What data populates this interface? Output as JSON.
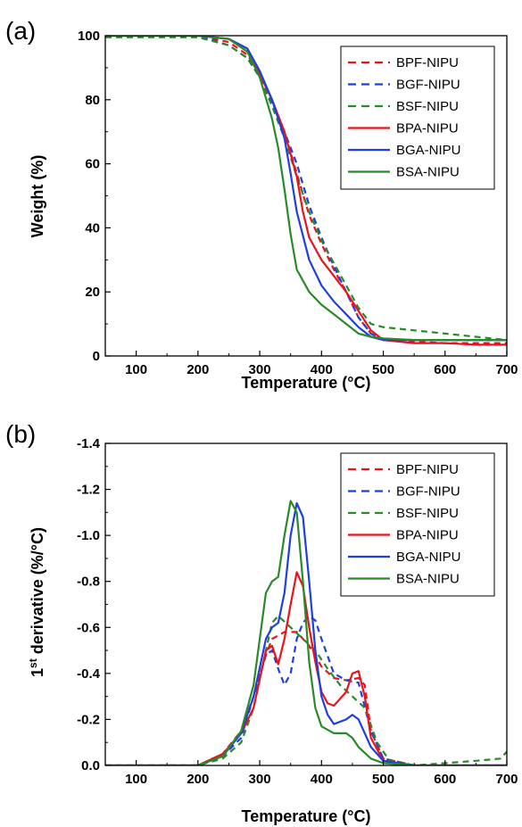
{
  "chart_data": [
    {
      "type": "line",
      "panel_label": "(a)",
      "xlabel": "Temperature (°C)",
      "ylabel": "Weight (%)",
      "xlim": [
        50,
        700
      ],
      "ylim": [
        0,
        100
      ],
      "xticks": [
        100,
        200,
        300,
        400,
        500,
        600,
        700
      ],
      "yticks": [
        0,
        20,
        40,
        60,
        80,
        100
      ],
      "ytick_labels": [
        "0",
        "20",
        "40",
        "60",
        "80",
        "100"
      ],
      "grid": false,
      "legend_position": "top-right",
      "series": [
        {
          "name": "BPF-NIPU",
          "color": "#e8141b",
          "dash": true,
          "x": [
            50,
            200,
            250,
            280,
            300,
            320,
            340,
            360,
            380,
            400,
            420,
            440,
            460,
            480,
            500,
            550,
            600,
            650,
            700
          ],
          "y": [
            100,
            100,
            98,
            94,
            88,
            80,
            70,
            57,
            44,
            35,
            27,
            20,
            12,
            7,
            5,
            4.5,
            4,
            4,
            4
          ]
        },
        {
          "name": "BGF-NIPU",
          "color": "#1f3fe0",
          "dash": true,
          "x": [
            50,
            200,
            250,
            280,
            300,
            320,
            340,
            360,
            380,
            400,
            420,
            440,
            460,
            480,
            500,
            550,
            600,
            650,
            700
          ],
          "y": [
            100,
            100,
            97,
            93,
            87,
            79,
            70,
            60,
            47,
            37,
            28,
            20,
            12,
            7,
            5,
            5,
            5,
            5,
            5
          ]
        },
        {
          "name": "BSF-NIPU",
          "color": "#2a8a2a",
          "dash": true,
          "x": [
            50,
            200,
            250,
            280,
            300,
            320,
            340,
            360,
            380,
            400,
            420,
            440,
            460,
            480,
            500,
            550,
            600,
            650,
            700
          ],
          "y": [
            99.5,
            99.5,
            97,
            93,
            87,
            78,
            68,
            56,
            45,
            36,
            29,
            22,
            15,
            10,
            9,
            8,
            7,
            6,
            5
          ]
        },
        {
          "name": "BPA-NIPU",
          "color": "#e8141b",
          "dash": false,
          "x": [
            50,
            200,
            250,
            280,
            300,
            320,
            340,
            360,
            370,
            380,
            400,
            420,
            440,
            460,
            480,
            500,
            550,
            600,
            650,
            700
          ],
          "y": [
            100,
            100,
            99,
            95,
            88,
            80,
            70,
            56,
            45,
            37,
            30,
            25,
            20,
            14,
            8,
            5,
            4,
            4,
            3.5,
            3.5
          ]
        },
        {
          "name": "BGA-NIPU",
          "color": "#1f3fe0",
          "dash": false,
          "x": [
            50,
            200,
            250,
            280,
            300,
            320,
            340,
            350,
            360,
            380,
            400,
            420,
            440,
            460,
            480,
            500,
            550,
            600,
            650,
            700
          ],
          "y": [
            100,
            100,
            99,
            96,
            89,
            80,
            68,
            57,
            45,
            30,
            22,
            17,
            13,
            9,
            6,
            5,
            5,
            5,
            5,
            5
          ]
        },
        {
          "name": "BSA-NIPU",
          "color": "#2a8a2a",
          "dash": false,
          "x": [
            50,
            200,
            250,
            280,
            300,
            320,
            330,
            340,
            350,
            360,
            380,
            400,
            420,
            440,
            460,
            480,
            500,
            550,
            600,
            650,
            700
          ],
          "y": [
            100,
            100,
            99,
            95,
            87,
            74,
            65,
            52,
            38,
            27,
            20,
            16,
            13,
            10,
            7,
            6,
            5.5,
            5,
            5,
            5,
            5
          ]
        }
      ]
    },
    {
      "type": "line",
      "panel_label": "(b)",
      "xlabel": "Temperature (°C)",
      "ylabel": "1st derivative (%/°C)",
      "xlim": [
        50,
        700
      ],
      "ylim": [
        0,
        -1.4
      ],
      "y_inverted": true,
      "xticks": [
        100,
        200,
        300,
        400,
        500,
        600,
        700
      ],
      "yticks": [
        0,
        -0.2,
        -0.4,
        -0.6,
        -0.8,
        -1.0,
        -1.2,
        -1.4
      ],
      "ytick_labels": [
        "0.0",
        "-0.2",
        "-0.4",
        "-0.6",
        "-0.8",
        "-1.0",
        "-1.2",
        "-1.4"
      ],
      "grid": false,
      "legend_position": "top-right",
      "series": [
        {
          "name": "BPF-NIPU",
          "color": "#e8141b",
          "dash": true,
          "x": [
            50,
            200,
            240,
            270,
            290,
            310,
            320,
            340,
            360,
            380,
            400,
            420,
            440,
            460,
            470,
            480,
            500,
            550,
            700
          ],
          "y": [
            0,
            0,
            -0.05,
            -0.15,
            -0.3,
            -0.48,
            -0.55,
            -0.58,
            -0.58,
            -0.52,
            -0.43,
            -0.38,
            -0.37,
            -0.38,
            -0.35,
            -0.15,
            -0.03,
            0,
            0
          ]
        },
        {
          "name": "BGF-NIPU",
          "color": "#1f3fe0",
          "dash": true,
          "x": [
            50,
            200,
            240,
            270,
            290,
            310,
            320,
            330,
            340,
            350,
            360,
            370,
            380,
            390,
            400,
            420,
            440,
            460,
            480,
            500,
            550,
            700
          ],
          "y": [
            0,
            0,
            -0.04,
            -0.12,
            -0.3,
            -0.48,
            -0.5,
            -0.42,
            -0.35,
            -0.4,
            -0.55,
            -0.62,
            -0.65,
            -0.63,
            -0.55,
            -0.4,
            -0.37,
            -0.36,
            -0.15,
            -0.03,
            0,
            0
          ]
        },
        {
          "name": "BSF-NIPU",
          "color": "#2a8a2a",
          "dash": true,
          "x": [
            50,
            200,
            240,
            270,
            290,
            310,
            320,
            330,
            350,
            370,
            390,
            410,
            430,
            450,
            470,
            490,
            510,
            550,
            600,
            650,
            690,
            700
          ],
          "y": [
            0,
            0,
            -0.03,
            -0.1,
            -0.25,
            -0.5,
            -0.62,
            -0.65,
            -0.6,
            -0.55,
            -0.5,
            -0.42,
            -0.35,
            -0.3,
            -0.25,
            -0.1,
            -0.02,
            0,
            -0.01,
            -0.02,
            -0.03,
            -0.06
          ]
        },
        {
          "name": "BPA-NIPU",
          "color": "#e8141b",
          "dash": false,
          "x": [
            50,
            200,
            240,
            270,
            290,
            310,
            320,
            330,
            340,
            350,
            360,
            370,
            380,
            390,
            400,
            410,
            420,
            440,
            450,
            460,
            470,
            480,
            500,
            550,
            700
          ],
          "y": [
            0,
            0,
            -0.05,
            -0.14,
            -0.25,
            -0.5,
            -0.52,
            -0.44,
            -0.55,
            -0.7,
            -0.84,
            -0.78,
            -0.6,
            -0.45,
            -0.32,
            -0.27,
            -0.26,
            -0.32,
            -0.4,
            -0.41,
            -0.3,
            -0.12,
            -0.02,
            0,
            0
          ]
        },
        {
          "name": "BGA-NIPU",
          "color": "#1f3fe0",
          "dash": false,
          "x": [
            50,
            200,
            240,
            270,
            290,
            310,
            320,
            330,
            340,
            350,
            360,
            370,
            380,
            390,
            400,
            410,
            420,
            440,
            450,
            460,
            470,
            480,
            500,
            550,
            700
          ],
          "y": [
            0,
            0,
            -0.04,
            -0.14,
            -0.3,
            -0.55,
            -0.6,
            -0.62,
            -0.75,
            -1.0,
            -1.14,
            -1.08,
            -0.8,
            -0.5,
            -0.3,
            -0.22,
            -0.18,
            -0.2,
            -0.22,
            -0.2,
            -0.14,
            -0.08,
            -0.02,
            0,
            0
          ]
        },
        {
          "name": "BSA-NIPU",
          "color": "#2a8a2a",
          "dash": false,
          "x": [
            50,
            200,
            240,
            270,
            290,
            300,
            310,
            320,
            330,
            340,
            350,
            360,
            370,
            380,
            390,
            400,
            420,
            440,
            450,
            460,
            480,
            500,
            550,
            700
          ],
          "y": [
            0,
            0,
            -0.04,
            -0.15,
            -0.35,
            -0.55,
            -0.75,
            -0.8,
            -0.82,
            -1.0,
            -1.15,
            -1.1,
            -0.8,
            -0.45,
            -0.25,
            -0.17,
            -0.14,
            -0.14,
            -0.12,
            -0.08,
            -0.03,
            -0.01,
            0,
            0
          ]
        }
      ]
    }
  ]
}
